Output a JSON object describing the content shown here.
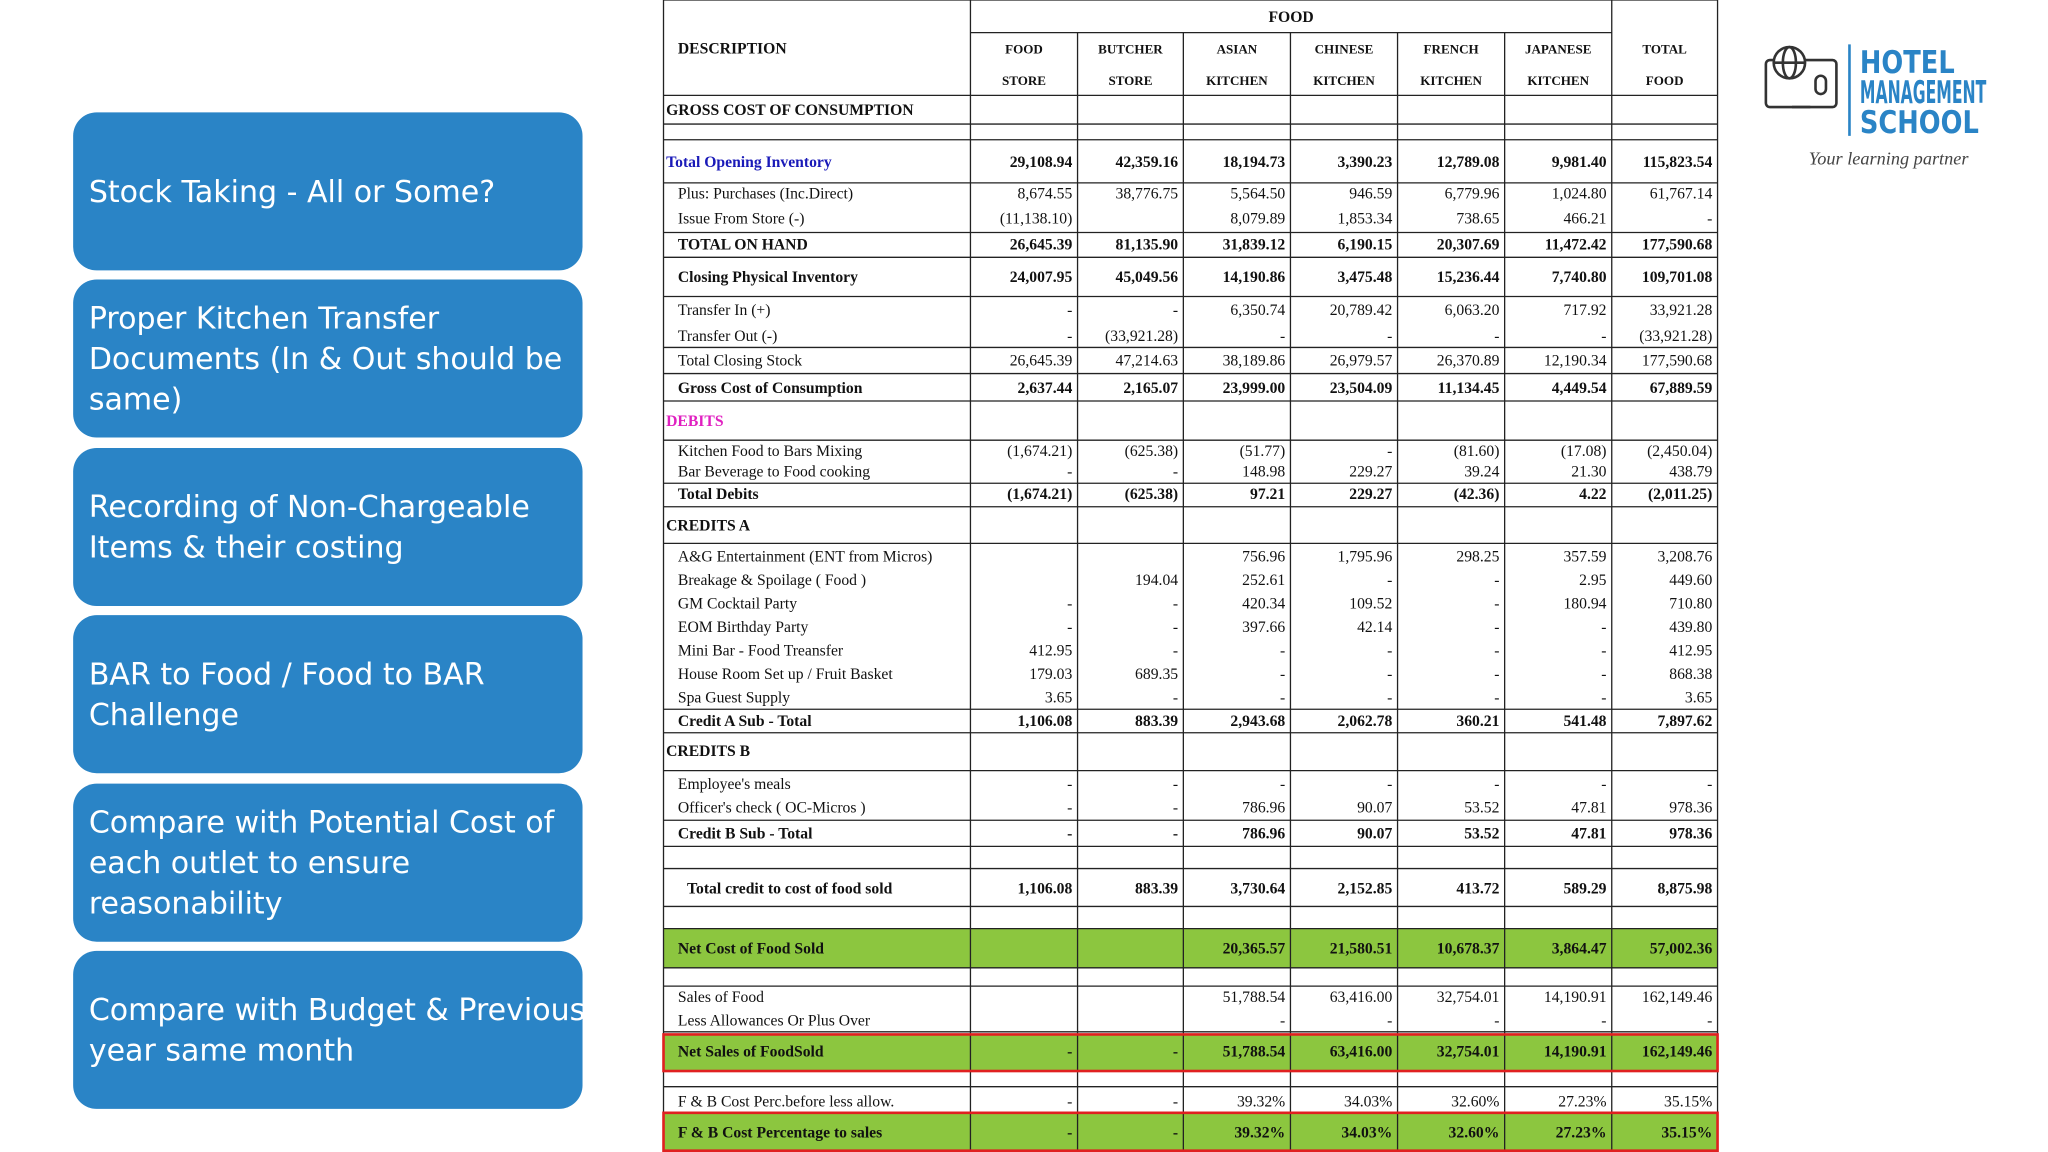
{
  "boxes": [
    {
      "lines": [
        "Stock Taking - All or Some?"
      ]
    },
    {
      "lines": [
        "Proper Kitchen Transfer",
        "Documents (In & Out should be",
        "same)"
      ]
    },
    {
      "lines": [
        "Recording of Non-Chargeable",
        "Items & their costing"
      ]
    },
    {
      "lines": [
        "BAR to Food / Food to BAR",
        "Challenge"
      ]
    },
    {
      "lines": [
        "Compare with Potential Cost of",
        "each outlet to ensure",
        "reasonability"
      ]
    },
    {
      "lines": [
        "Compare with Budget & Previous",
        "year same month"
      ]
    }
  ],
  "table": {
    "group": "FOOD",
    "description": "DESCRIPTION",
    "columns": [
      [
        "FOOD",
        "STORE"
      ],
      [
        "BUTCHER",
        "STORE"
      ],
      [
        "ASIAN",
        "KITCHEN"
      ],
      [
        "CHINESE",
        "KITCHEN"
      ],
      [
        "FRENCH",
        "KITCHEN"
      ],
      [
        "JAPANESE",
        "KITCHEN"
      ],
      [
        "TOTAL",
        "FOOD"
      ]
    ],
    "rows": [
      {
        "label": "GROSS COST OF CONSUMPTION"
      },
      {
        "label": "Total Opening Inventory",
        "values": [
          "29,108.94",
          "42,359.16",
          "18,194.73",
          "3,390.23",
          "12,789.08",
          "9,981.40",
          "115,823.54"
        ]
      },
      {
        "label": "Plus: Purchases (Inc.Direct)",
        "values": [
          "8,674.55",
          "38,776.75",
          "5,564.50",
          "946.59",
          "6,779.96",
          "1,024.80",
          "61,767.14"
        ]
      },
      {
        "label": "Issue From Store (-)",
        "values": [
          "(11,138.10)",
          null,
          "8,079.89",
          "1,853.34",
          "738.65",
          "466.21",
          "-"
        ]
      },
      {
        "label": "TOTAL ON HAND",
        "values": [
          "26,645.39",
          "81,135.90",
          "31,839.12",
          "6,190.15",
          "20,307.69",
          "11,472.42",
          "177,590.68"
        ]
      },
      {
        "label": "Closing  Physical Inventory",
        "values": [
          "24,007.95",
          "45,049.56",
          "14,190.86",
          "3,475.48",
          "15,236.44",
          "7,740.80",
          "109,701.08"
        ]
      },
      {
        "label": "Transfer In   (+)",
        "values": [
          "-",
          "-",
          "6,350.74",
          "20,789.42",
          "6,063.20",
          "717.92",
          "33,921.28"
        ]
      },
      {
        "label": "Transfer Out (-)",
        "values": [
          "-",
          "(33,921.28)",
          "-",
          "-",
          "-",
          "-",
          "(33,921.28)"
        ]
      },
      {
        "label": "Total Closing Stock",
        "values": [
          "26,645.39",
          "47,214.63",
          "38,189.86",
          "26,979.57",
          "26,370.89",
          "12,190.34",
          "177,590.68"
        ]
      },
      {
        "label": "Gross Cost  of Consumption",
        "values": [
          "2,637.44",
          "2,165.07",
          "23,999.00",
          "23,504.09",
          "11,134.45",
          "4,449.54",
          "67,889.59"
        ]
      },
      {
        "label": "DEBITS"
      },
      {
        "label": "Kitchen Food to Bars Mixing",
        "values": [
          "(1,674.21)",
          "(625.38)",
          "(51.77)",
          "-",
          "(81.60)",
          "(17.08)",
          "(2,450.04)"
        ]
      },
      {
        "label": "Bar Beverage to Food cooking",
        "values": [
          "-",
          "-",
          "148.98",
          "229.27",
          "39.24",
          "21.30",
          "438.79"
        ]
      },
      {
        "label": "Total Debits",
        "values": [
          "(1,674.21)",
          "(625.38)",
          "97.21",
          "229.27",
          "(42.36)",
          "4.22",
          "(2,011.25)"
        ]
      },
      {
        "label": "CREDITS A"
      },
      {
        "label": "A&G Entertainment (ENT from Micros)",
        "values": [
          null,
          null,
          "756.96",
          "1,795.96",
          "298.25",
          "357.59",
          "3,208.76"
        ]
      },
      {
        "label": "Breakage & Spoilage ( Food )",
        "values": [
          null,
          "194.04",
          "252.61",
          "-",
          "-",
          "2.95",
          "449.60"
        ]
      },
      {
        "label": "GM Cocktail Party",
        "values": [
          "-",
          "-",
          "420.34",
          "109.52",
          "-",
          "180.94",
          "710.80"
        ]
      },
      {
        "label": "EOM Birthday Party",
        "values": [
          "-",
          "-",
          "397.66",
          "42.14",
          "-",
          "-",
          "439.80"
        ]
      },
      {
        "label": "Mini Bar - Food Treansfer",
        "values": [
          "412.95",
          "-",
          "-",
          "-",
          "-",
          "-",
          "412.95"
        ]
      },
      {
        "label": "House Room Set up / Fruit Basket",
        "values": [
          "179.03",
          "689.35",
          "-",
          "-",
          "-",
          "-",
          "868.38"
        ]
      },
      {
        "label": "Spa Guest Supply",
        "values": [
          "3.65",
          "-",
          "-",
          "-",
          "-",
          "-",
          "3.65"
        ]
      },
      {
        "label": "Credit A Sub - Total",
        "values": [
          "1,106.08",
          "883.39",
          "2,943.68",
          "2,062.78",
          "360.21",
          "541.48",
          "7,897.62"
        ]
      },
      {
        "label": "CREDITS B"
      },
      {
        "label": "Employee's meals",
        "values": [
          "-",
          "-",
          "-",
          "-",
          "-",
          "-",
          "-"
        ]
      },
      {
        "label": "Officer's check ( OC-Micros )",
        "values": [
          "-",
          "-",
          "786.96",
          "90.07",
          "53.52",
          "47.81",
          "978.36"
        ]
      },
      {
        "label": "Credit B Sub - Total",
        "values": [
          "-",
          "-",
          "786.96",
          "90.07",
          "53.52",
          "47.81",
          "978.36"
        ]
      },
      {
        "label": "Total credit to cost of food sold",
        "values": [
          "1,106.08",
          "883.39",
          "3,730.64",
          "2,152.85",
          "413.72",
          "589.29",
          "8,875.98"
        ]
      },
      {
        "label": "Net Cost of Food Sold",
        "values": [
          null,
          null,
          "20,365.57",
          "21,580.51",
          "10,678.37",
          "3,864.47",
          "57,002.36"
        ]
      },
      {
        "label": "Sales of Food",
        "values": [
          null,
          null,
          "51,788.54",
          "63,416.00",
          "32,754.01",
          "14,190.91",
          "162,149.46"
        ]
      },
      {
        "label": "Less Allowances Or Plus Over",
        "values": [
          null,
          null,
          "-",
          "-",
          "-",
          "-",
          "-"
        ]
      },
      {
        "label": "Net Sales of FoodSold",
        "values": [
          "-",
          "-",
          "51,788.54",
          "63,416.00",
          "32,754.01",
          "14,190.91",
          "162,149.46"
        ]
      },
      {
        "label": "F & B Cost Perc.before less allow.",
        "values": [
          "-",
          "-",
          "39.32%",
          "34.03%",
          "32.60%",
          "27.23%",
          "35.15%"
        ]
      },
      {
        "label": "F & B Cost Percentage to sales",
        "values": [
          "-",
          "-",
          "39.32%",
          "34.03%",
          "32.60%",
          "27.23%",
          "35.15%"
        ]
      }
    ]
  },
  "logo": {
    "lines": [
      "HOTEL",
      "MANAGEMENT",
      "SCHOOL"
    ],
    "tagline": "Your learning partner"
  }
}
